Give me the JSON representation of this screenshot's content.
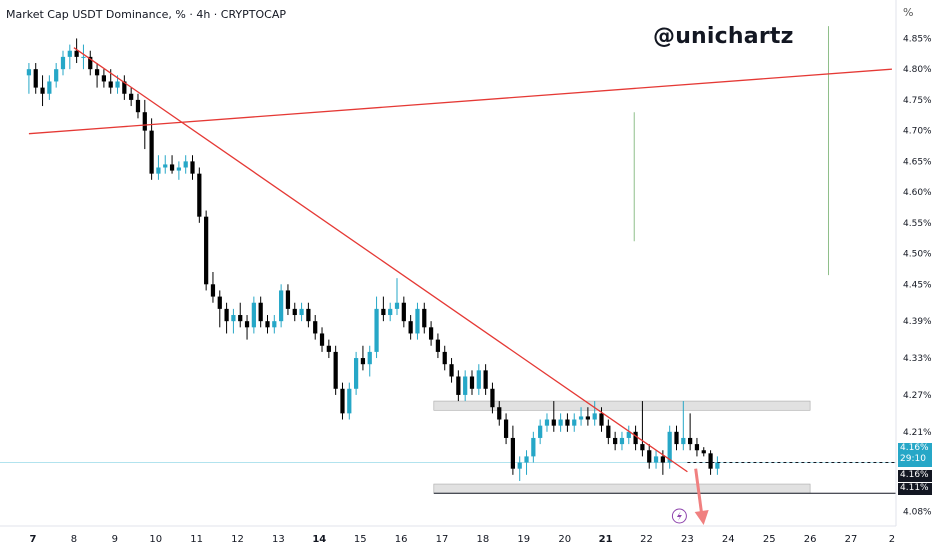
{
  "header": {
    "title": "Market Cap USDT Dominance, % · 4h · CRYPTOCAP",
    "watermark": "@unichartz",
    "percent_button": "%"
  },
  "price_labels": {
    "current_value": "4.16%",
    "countdown": "29:10",
    "last_value": "4.16%",
    "support_value": "4.11%"
  },
  "colors": {
    "up": "#26a7c7",
    "down": "#000000",
    "trendline": "#e53935",
    "zone": "#c8c8c8",
    "vline": "#8fbf8a",
    "arrow": "#f08080"
  },
  "chart_data": {
    "type": "candlestick",
    "symbol": "Market Cap USDT Dominance",
    "timeframe": "4h",
    "source": "CRYPTOCAP",
    "unit": "%",
    "ylim": [
      4.06,
      4.88
    ],
    "y_ticks": [
      "4.85%",
      "4.80%",
      "4.75%",
      "4.70%",
      "4.65%",
      "4.60%",
      "4.55%",
      "4.50%",
      "4.45%",
      "4.39%",
      "4.33%",
      "4.27%",
      "4.21%",
      "4.16%",
      "4.08%"
    ],
    "x_ticks": [
      "7",
      "8",
      "9",
      "10",
      "11",
      "12",
      "13",
      "14",
      "15",
      "16",
      "17",
      "18",
      "19",
      "20",
      "21",
      "22",
      "23",
      "24",
      "25",
      "26",
      "27",
      "2"
    ],
    "bold_x_ticks": [
      "7",
      "14",
      "21"
    ],
    "x_start_day": 6.9,
    "candles_per_day": 6,
    "candles": [
      [
        4.79,
        4.81,
        4.76,
        4.8
      ],
      [
        4.8,
        4.81,
        4.76,
        4.77
      ],
      [
        4.77,
        4.79,
        4.74,
        4.76
      ],
      [
        4.76,
        4.79,
        4.75,
        4.78
      ],
      [
        4.78,
        4.81,
        4.77,
        4.8
      ],
      [
        4.8,
        4.83,
        4.79,
        4.82
      ],
      [
        4.82,
        4.84,
        4.8,
        4.83
      ],
      [
        4.83,
        4.85,
        4.81,
        4.82
      ],
      [
        4.82,
        4.84,
        4.8,
        4.82
      ],
      [
        4.82,
        4.83,
        4.79,
        4.8
      ],
      [
        4.8,
        4.81,
        4.77,
        4.79
      ],
      [
        4.79,
        4.8,
        4.77,
        4.78
      ],
      [
        4.78,
        4.8,
        4.76,
        4.77
      ],
      [
        4.77,
        4.79,
        4.76,
        4.78
      ],
      [
        4.78,
        4.79,
        4.75,
        4.76
      ],
      [
        4.76,
        4.77,
        4.74,
        4.75
      ],
      [
        4.75,
        4.76,
        4.72,
        4.73
      ],
      [
        4.73,
        4.75,
        4.67,
        4.7
      ],
      [
        4.7,
        4.72,
        4.62,
        4.63
      ],
      [
        4.63,
        4.66,
        4.62,
        4.64
      ],
      [
        4.64,
        4.66,
        4.63,
        4.645
      ],
      [
        4.645,
        4.66,
        4.63,
        4.635
      ],
      [
        4.635,
        4.65,
        4.62,
        4.64
      ],
      [
        4.64,
        4.66,
        4.63,
        4.65
      ],
      [
        4.65,
        4.66,
        4.62,
        4.63
      ],
      [
        4.63,
        4.64,
        4.55,
        4.56
      ],
      [
        4.56,
        4.57,
        4.44,
        4.45
      ],
      [
        4.45,
        4.47,
        4.42,
        4.43
      ],
      [
        4.43,
        4.44,
        4.38,
        4.41
      ],
      [
        4.41,
        4.42,
        4.37,
        4.39
      ],
      [
        4.39,
        4.41,
        4.37,
        4.4
      ],
      [
        4.4,
        4.42,
        4.38,
        4.39
      ],
      [
        4.39,
        4.4,
        4.36,
        4.38
      ],
      [
        4.38,
        4.43,
        4.37,
        4.42
      ],
      [
        4.42,
        4.43,
        4.38,
        4.39
      ],
      [
        4.39,
        4.4,
        4.37,
        4.38
      ],
      [
        4.38,
        4.4,
        4.37,
        4.39
      ],
      [
        4.39,
        4.45,
        4.38,
        4.44
      ],
      [
        4.44,
        4.45,
        4.4,
        4.41
      ],
      [
        4.41,
        4.42,
        4.39,
        4.4
      ],
      [
        4.4,
        4.42,
        4.39,
        4.41
      ],
      [
        4.41,
        4.42,
        4.38,
        4.39
      ],
      [
        4.39,
        4.4,
        4.36,
        4.37
      ],
      [
        4.37,
        4.38,
        4.34,
        4.35
      ],
      [
        4.35,
        4.36,
        4.33,
        4.34
      ],
      [
        4.34,
        4.35,
        4.27,
        4.28
      ],
      [
        4.28,
        4.29,
        4.23,
        4.24
      ],
      [
        4.24,
        4.29,
        4.23,
        4.28
      ],
      [
        4.28,
        4.34,
        4.27,
        4.33
      ],
      [
        4.33,
        4.35,
        4.31,
        4.32
      ],
      [
        4.32,
        4.35,
        4.3,
        4.34
      ],
      [
        4.34,
        4.43,
        4.33,
        4.41
      ],
      [
        4.41,
        4.43,
        4.39,
        4.4
      ],
      [
        4.4,
        4.42,
        4.39,
        4.41
      ],
      [
        4.41,
        4.46,
        4.4,
        4.42
      ],
      [
        4.42,
        4.43,
        4.38,
        4.39
      ],
      [
        4.39,
        4.4,
        4.36,
        4.37
      ],
      [
        4.37,
        4.42,
        4.36,
        4.41
      ],
      [
        4.41,
        4.42,
        4.37,
        4.38
      ],
      [
        4.38,
        4.39,
        4.35,
        4.36
      ],
      [
        4.36,
        4.37,
        4.33,
        4.34
      ],
      [
        4.34,
        4.35,
        4.31,
        4.32
      ],
      [
        4.32,
        4.33,
        4.29,
        4.3
      ],
      [
        4.3,
        4.31,
        4.26,
        4.27
      ],
      [
        4.27,
        4.31,
        4.26,
        4.3
      ],
      [
        4.3,
        4.31,
        4.27,
        4.28
      ],
      [
        4.28,
        4.32,
        4.27,
        4.31
      ],
      [
        4.31,
        4.32,
        4.27,
        4.28
      ],
      [
        4.28,
        4.29,
        4.24,
        4.25
      ],
      [
        4.25,
        4.26,
        4.22,
        4.23
      ],
      [
        4.23,
        4.24,
        4.19,
        4.2
      ],
      [
        4.2,
        4.22,
        4.14,
        4.15
      ],
      [
        4.15,
        4.17,
        4.13,
        4.16
      ],
      [
        4.16,
        4.18,
        4.14,
        4.17
      ],
      [
        4.17,
        4.21,
        4.16,
        4.2
      ],
      [
        4.2,
        4.23,
        4.19,
        4.22
      ],
      [
        4.22,
        4.24,
        4.21,
        4.23
      ],
      [
        4.23,
        4.26,
        4.21,
        4.22
      ],
      [
        4.22,
        4.24,
        4.21,
        4.23
      ],
      [
        4.23,
        4.24,
        4.21,
        4.22
      ],
      [
        4.22,
        4.24,
        4.21,
        4.23
      ],
      [
        4.23,
        4.25,
        4.22,
        4.235
      ],
      [
        4.235,
        4.25,
        4.22,
        4.23
      ],
      [
        4.23,
        4.26,
        4.22,
        4.24
      ],
      [
        4.24,
        4.25,
        4.21,
        4.22
      ],
      [
        4.22,
        4.23,
        4.19,
        4.2
      ],
      [
        4.2,
        4.21,
        4.18,
        4.19
      ],
      [
        4.19,
        4.21,
        4.18,
        4.2
      ],
      [
        4.2,
        4.22,
        4.19,
        4.21
      ],
      [
        4.21,
        4.22,
        4.18,
        4.19
      ],
      [
        4.19,
        4.26,
        4.17,
        4.18
      ],
      [
        4.18,
        4.19,
        4.15,
        4.16
      ],
      [
        4.16,
        4.18,
        4.15,
        4.17
      ],
      [
        4.17,
        4.18,
        4.14,
        4.16
      ],
      [
        4.16,
        4.22,
        4.15,
        4.21
      ],
      [
        4.21,
        4.22,
        4.18,
        4.19
      ],
      [
        4.19,
        4.26,
        4.18,
        4.2
      ],
      [
        4.2,
        4.24,
        4.18,
        4.19
      ],
      [
        4.19,
        4.2,
        4.17,
        4.18
      ],
      [
        4.18,
        4.185,
        4.17,
        4.175
      ],
      [
        4.175,
        4.18,
        4.14,
        4.15
      ],
      [
        4.15,
        4.17,
        4.14,
        4.16
      ]
    ],
    "lines": [
      {
        "name": "descending trendline",
        "points": [
          [
            8.0,
            4.835
          ],
          [
            23.0,
            4.145
          ]
        ]
      },
      {
        "name": "rising trendline",
        "points": [
          [
            6.9,
            4.695
          ],
          [
            28.0,
            4.8
          ]
        ]
      }
    ],
    "zones": [
      {
        "name": "resistance zone",
        "x": [
          16.8,
          26.0
        ],
        "y": [
          4.245,
          4.26
        ]
      },
      {
        "name": "support zone",
        "x": [
          16.8,
          26.0
        ],
        "y": [
          4.11,
          4.125
        ]
      }
    ],
    "hlines": [
      {
        "name": "support line",
        "y": 4.11,
        "x_from": 16.8
      },
      {
        "name": "current price line",
        "y": 4.16,
        "x_from": 23.0,
        "dashed": true
      }
    ],
    "vlines": [
      {
        "x": 21.7,
        "y": [
          4.52,
          4.73
        ]
      },
      {
        "x": 26.45,
        "y": [
          4.465,
          4.87
        ]
      }
    ],
    "arrow": {
      "x": 23.3,
      "from": 4.15,
      "to": 4.06
    },
    "event_marker_x": 23.0
  }
}
